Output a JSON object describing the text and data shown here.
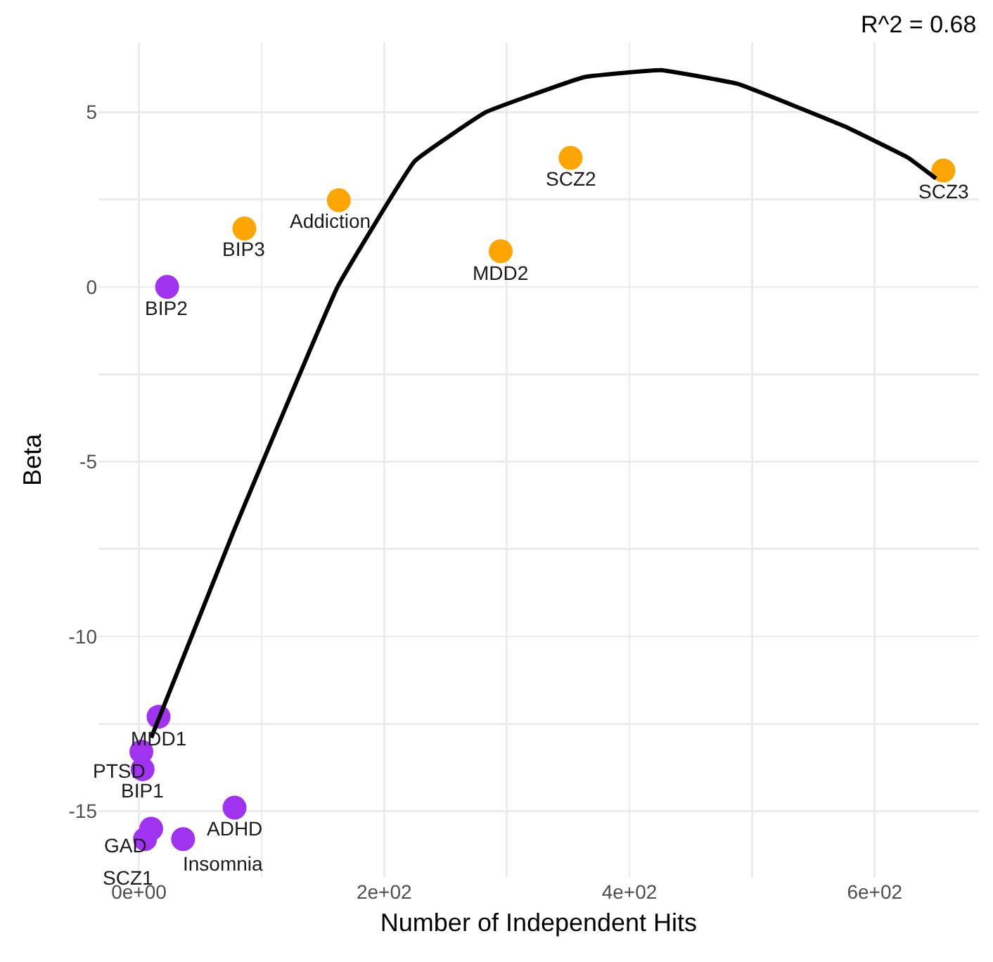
{
  "chart_data": {
    "type": "scatter",
    "xlabel": "Number of Independent Hits",
    "ylabel": "Beta",
    "xlim": [
      -33,
      685
    ],
    "ylim": [
      -16.9,
      7
    ],
    "xticks": [
      {
        "value": 0,
        "label": "0e+00"
      },
      {
        "value": 100,
        "label": null
      },
      {
        "value": 200,
        "label": "2e+02"
      },
      {
        "value": 300,
        "label": null
      },
      {
        "value": 400,
        "label": "4e+02"
      },
      {
        "value": 500,
        "label": null
      },
      {
        "value": 600,
        "label": "6e+02"
      }
    ],
    "yticks": [
      {
        "value": -15,
        "label": "-15"
      },
      {
        "value": -12.5,
        "label": null
      },
      {
        "value": -10,
        "label": "-10"
      },
      {
        "value": -7.5,
        "label": null
      },
      {
        "value": -5,
        "label": "-5"
      },
      {
        "value": -2.5,
        "label": null
      },
      0,
      {
        "value": 2.5,
        "label": null
      },
      5
    ],
    "grid": true,
    "series": [
      {
        "marker": "circle",
        "x": [
          656,
          352,
          295,
          163,
          86,
          23,
          16,
          2,
          3,
          78,
          10,
          5,
          36
        ],
        "values": [
          3.33,
          3.69,
          1.02,
          2.48,
          1.67,
          0.0,
          -12.3,
          -13.3,
          -13.8,
          -14.9,
          -15.5,
          -15.8,
          -15.8
        ],
        "colors": [
          "#ffa500",
          "#ffa500",
          "#ffa500",
          "#ffa500",
          "#ffa500",
          "#a033f0",
          "#a033f0",
          "#a033f0",
          "#a033f0",
          "#a033f0",
          "#a033f0",
          "#a033f0",
          "#a033f0"
        ]
      },
      {
        "type": "line",
        "color": "#000000",
        "x": [
          10,
          76,
          162,
          225,
          283,
          363,
          426,
          489,
          575,
          627,
          650
        ],
        "values": [
          -12.9,
          -7.1,
          0,
          3.6,
          5.0,
          6.0,
          6.2,
          5.8,
          4.6,
          3.7,
          3.1
        ]
      }
    ],
    "annotations": [
      {
        "text": "SCZ3",
        "x": 656,
        "y": 3.33
      },
      {
        "text": "SCZ2",
        "x": 352,
        "y": 3.69
      },
      {
        "text": "MDD2",
        "x": 295,
        "y": 1.02
      },
      {
        "text": "Addiction",
        "x": 163,
        "y": 2.48
      },
      {
        "text": "BIP3",
        "x": 86,
        "y": 1.67
      },
      {
        "text": "BIP2",
        "x": 23,
        "y": 0.0
      },
      {
        "text": "MDD1",
        "x": 16,
        "y": -12.3
      },
      {
        "text": "PTSD",
        "x": 2,
        "y": -13.3
      },
      {
        "text": "BIP1",
        "x": 3,
        "y": -13.8
      },
      {
        "text": "ADHD",
        "x": 78,
        "y": -14.9
      },
      {
        "text": "GAD",
        "x": 10,
        "y": -15.5
      },
      {
        "text": "SCZ1",
        "x": 5,
        "y": -15.8
      },
      {
        "text": "Insomnia",
        "x": 36,
        "y": -15.8
      },
      "R^2 = 0.68"
    ]
  }
}
